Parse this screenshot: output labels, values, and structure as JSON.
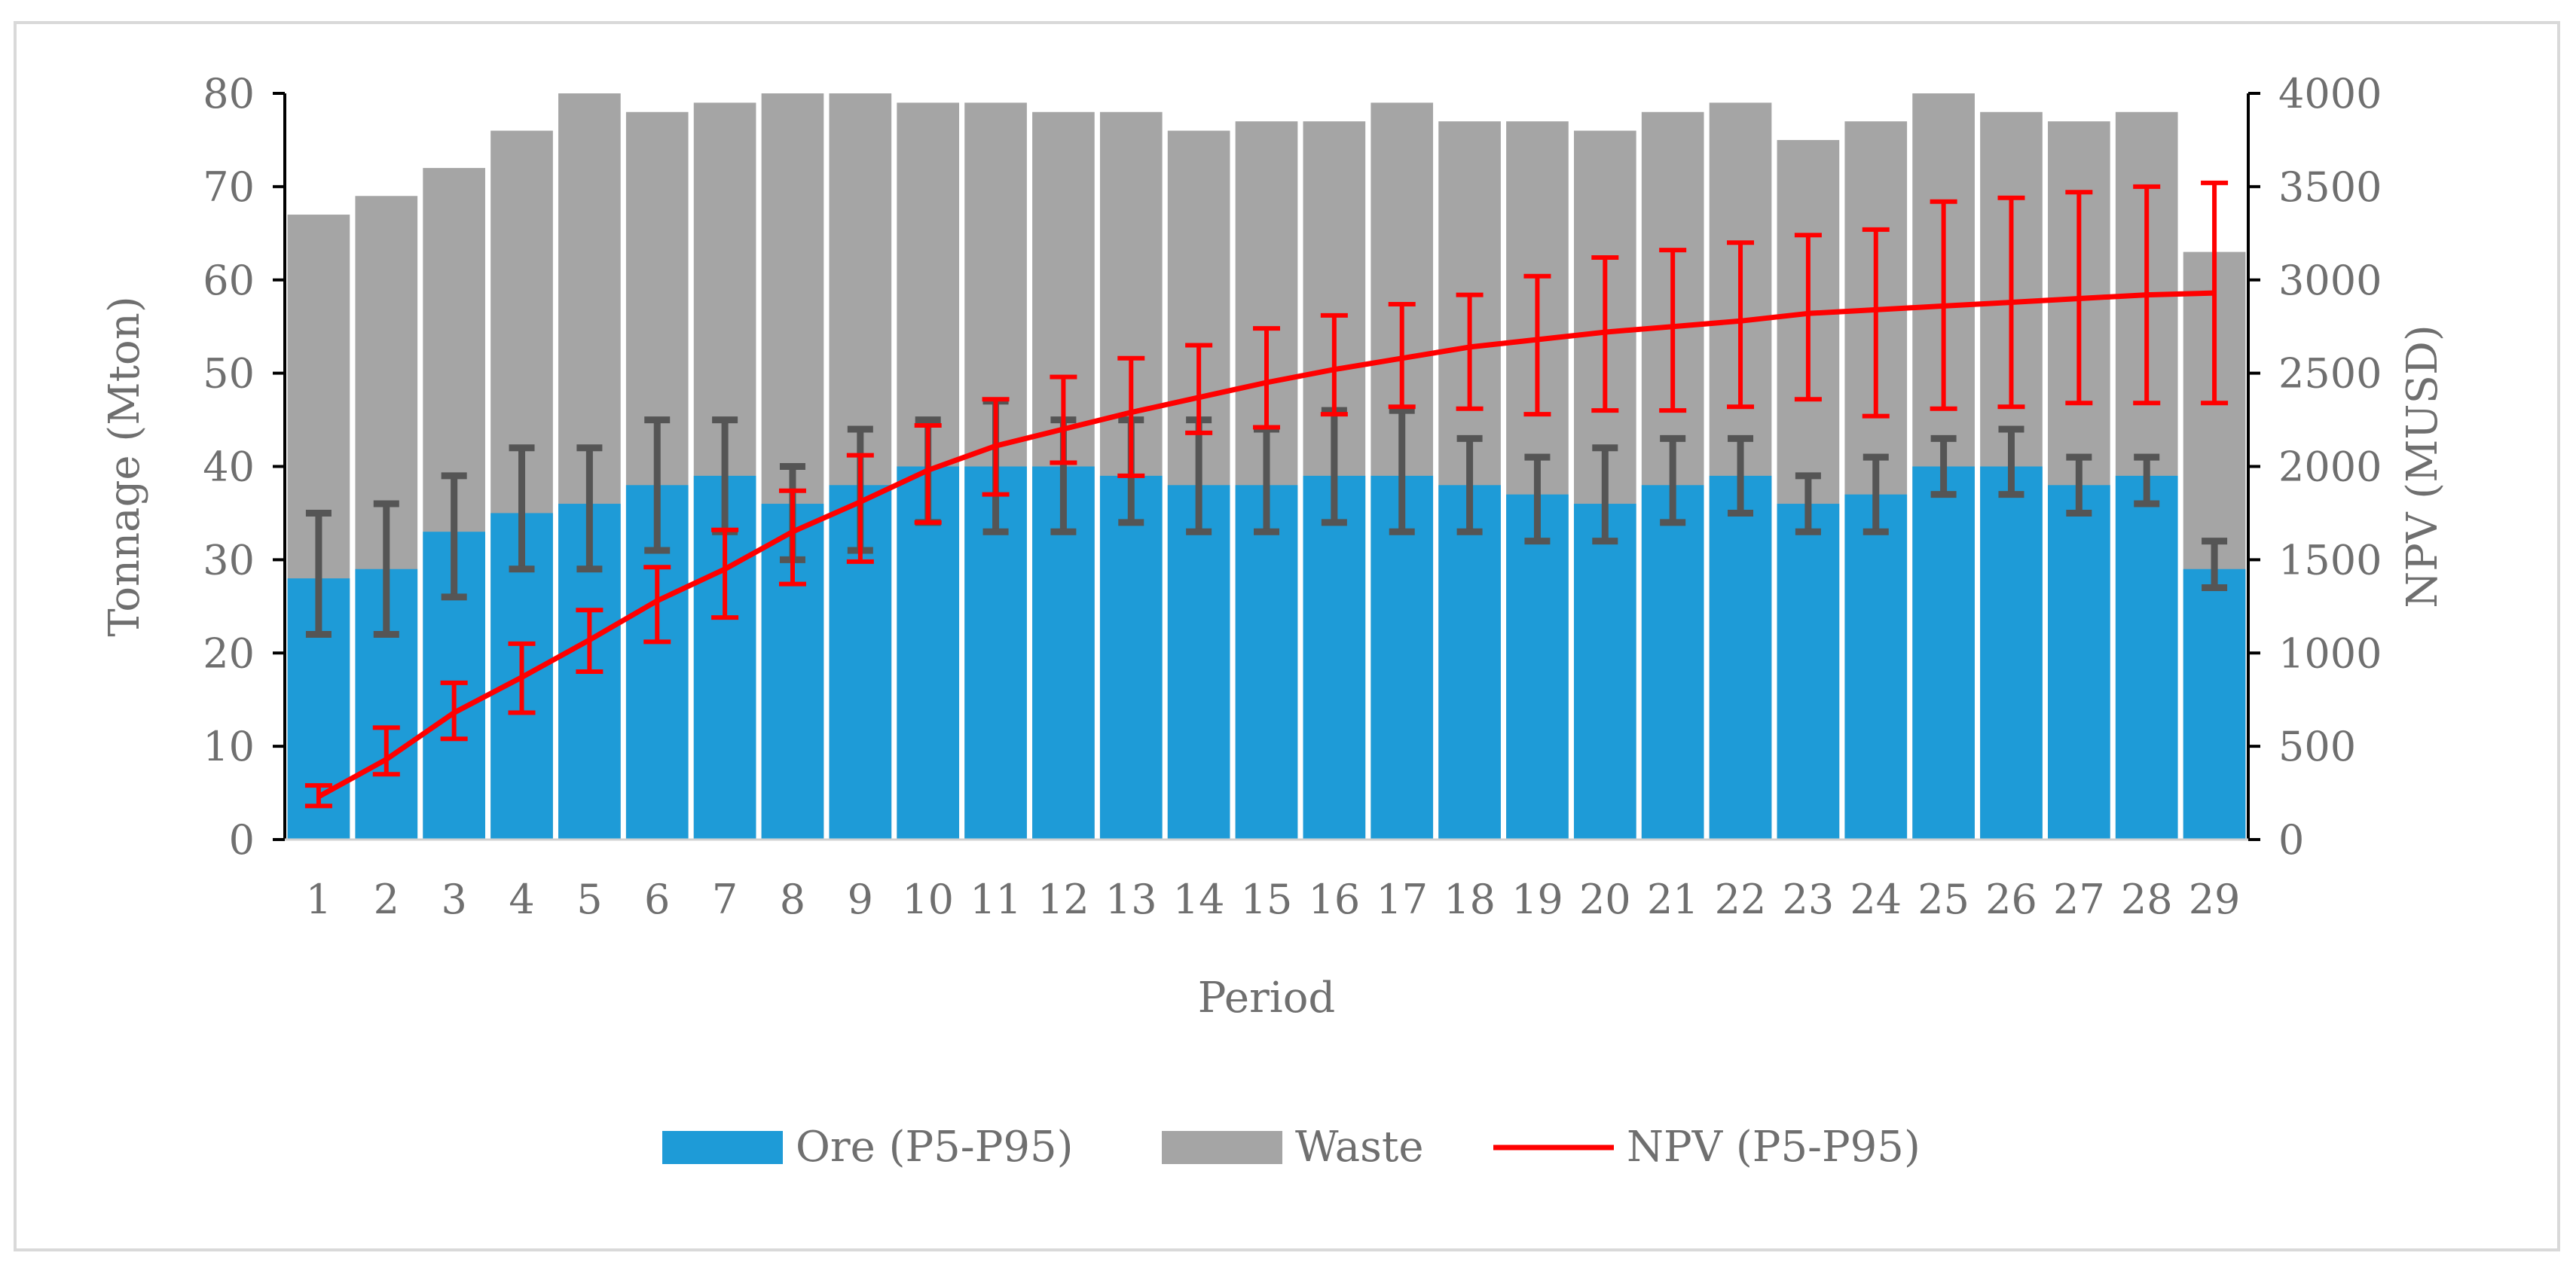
{
  "chart_data": {
    "type": "bar",
    "stacked": true,
    "categories": [
      "1",
      "2",
      "3",
      "4",
      "5",
      "6",
      "7",
      "8",
      "9",
      "10",
      "11",
      "12",
      "13",
      "14",
      "15",
      "16",
      "17",
      "18",
      "19",
      "20",
      "21",
      "22",
      "23",
      "24",
      "25",
      "26",
      "27",
      "28",
      "29"
    ],
    "xlabel": "Period",
    "ylabel": "Tonnage (Mton)",
    "y2label": "NPV (MUSD)",
    "ylim": [
      0,
      80
    ],
    "y2lim": [
      0,
      4000
    ],
    "yticks": [
      0,
      10,
      20,
      30,
      40,
      50,
      60,
      70,
      80
    ],
    "y2ticks": [
      0,
      500,
      1000,
      1500,
      2000,
      2500,
      3000,
      3500,
      4000
    ],
    "series": [
      {
        "name": "Ore (P5-P95)",
        "kind": "bar",
        "axis": "left",
        "color": "#1e9bd7",
        "values": [
          28,
          29,
          33,
          35,
          36,
          38,
          39,
          36,
          38,
          40,
          40,
          40,
          39,
          38,
          38,
          39,
          39,
          38,
          37,
          36,
          38,
          39,
          36,
          37,
          40,
          40,
          38,
          39,
          29
        ],
        "p5": [
          22,
          22,
          26,
          29,
          29,
          31,
          33,
          30,
          31,
          34,
          33,
          33,
          34,
          33,
          33,
          34,
          33,
          33,
          32,
          32,
          34,
          35,
          33,
          33,
          37,
          37,
          35,
          36,
          27
        ],
        "p95": [
          35,
          36,
          39,
          42,
          42,
          45,
          45,
          40,
          44,
          45,
          47,
          45,
          45,
          45,
          44,
          46,
          46,
          43,
          41,
          42,
          43,
          43,
          39,
          41,
          43,
          44,
          41,
          41,
          32
        ],
        "error_color": "#555555"
      },
      {
        "name": "Waste",
        "kind": "bar",
        "axis": "left",
        "color": "#a5a5a5",
        "totals": [
          67,
          69,
          72,
          76,
          80,
          78,
          79,
          80,
          80,
          79,
          79,
          78,
          78,
          76,
          77,
          77,
          79,
          77,
          77,
          76,
          78,
          79,
          75,
          77,
          80,
          78,
          77,
          78,
          63
        ]
      },
      {
        "name": "NPV (P5-P95)",
        "kind": "line",
        "axis": "right",
        "color": "#ff0000",
        "values": [
          230,
          430,
          680,
          870,
          1070,
          1280,
          1450,
          1650,
          1810,
          1980,
          2110,
          2200,
          2290,
          2370,
          2450,
          2520,
          2580,
          2640,
          2680,
          2720,
          2750,
          2780,
          2820,
          2840,
          2860,
          2880,
          2900,
          2920,
          2930
        ],
        "p5": [
          180,
          350,
          540,
          680,
          900,
          1060,
          1190,
          1370,
          1490,
          1700,
          1850,
          2020,
          1950,
          2180,
          2210,
          2280,
          2320,
          2310,
          2280,
          2300,
          2300,
          2320,
          2360,
          2270,
          2310,
          2320,
          2340,
          2340,
          2340
        ],
        "p95": [
          290,
          600,
          840,
          1050,
          1230,
          1460,
          1660,
          1870,
          2060,
          2220,
          2360,
          2480,
          2580,
          2650,
          2740,
          2810,
          2870,
          2920,
          3020,
          3120,
          3160,
          3200,
          3240,
          3270,
          3420,
          3440,
          3470,
          3500,
          3520
        ]
      }
    ],
    "legend": [
      "Ore (P5-P95)",
      "Waste",
      "NPV (P5-P95)"
    ],
    "legend_position": "bottom"
  }
}
